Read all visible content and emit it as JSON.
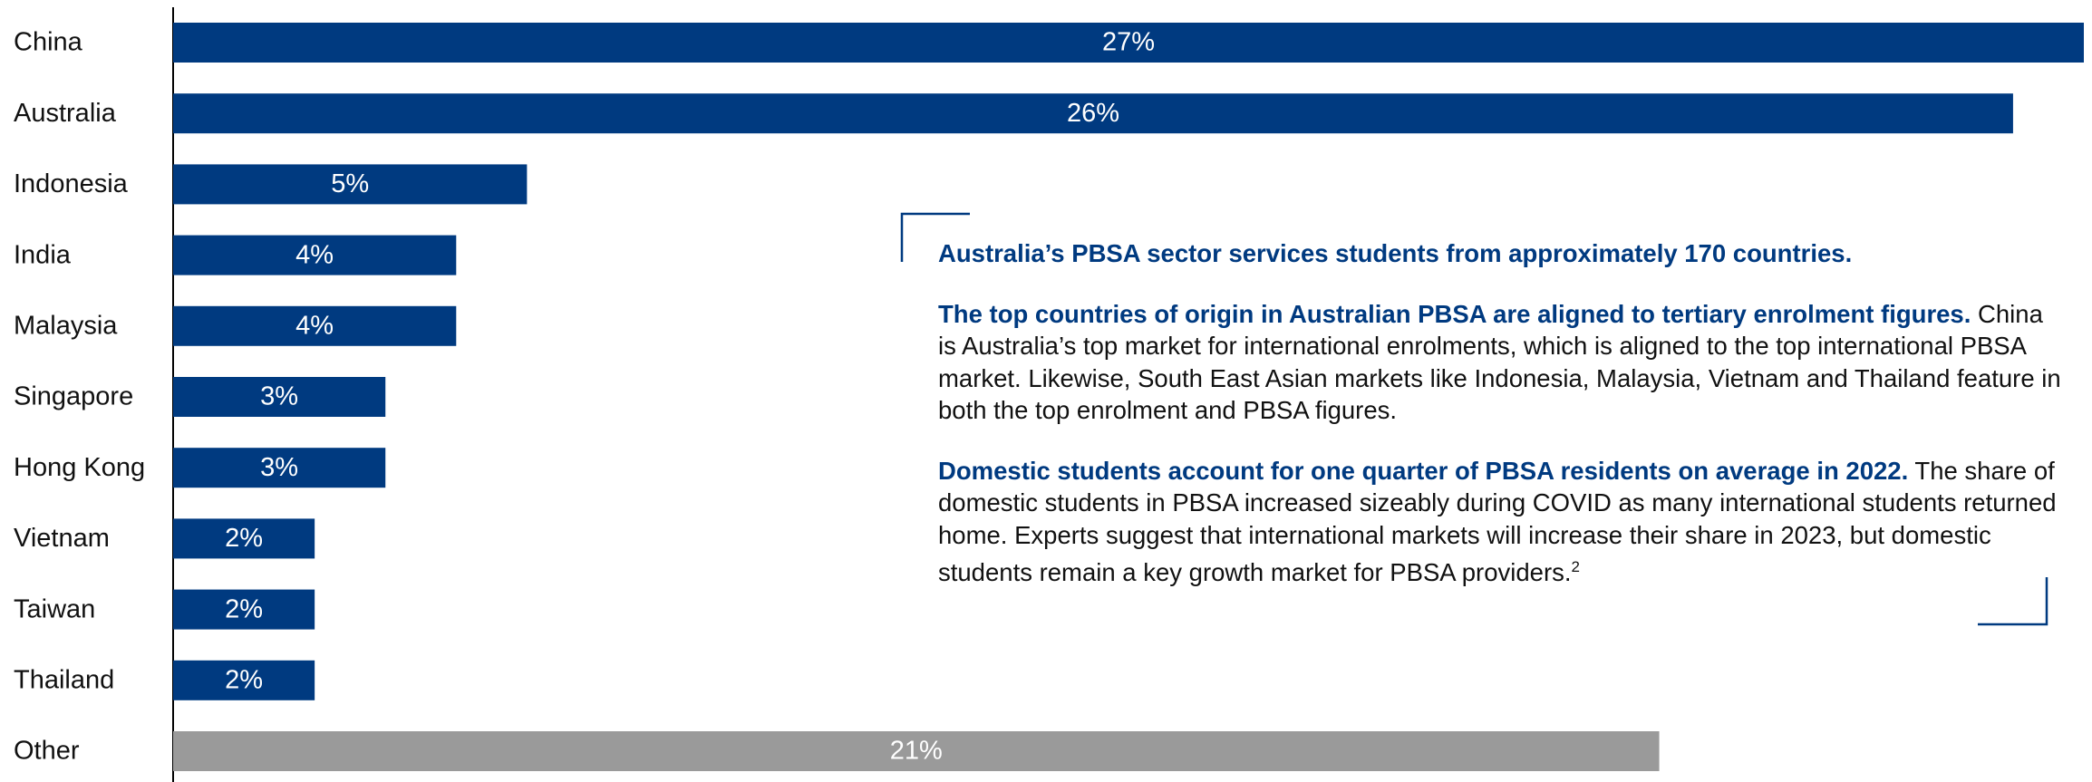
{
  "chart_data": {
    "type": "bar",
    "orientation": "horizontal",
    "categories": [
      "China",
      "Australia",
      "Indonesia",
      "India",
      "Malaysia",
      "Singapore",
      "Hong Kong",
      "Vietnam",
      "Taiwan",
      "Thailand",
      "Other"
    ],
    "values": [
      27,
      26,
      5,
      4,
      4,
      3,
      3,
      2,
      2,
      2,
      21
    ],
    "value_labels": [
      "27%",
      "26%",
      "5%",
      "4%",
      "4%",
      "3%",
      "3%",
      "2%",
      "2%",
      "2%",
      "21%"
    ],
    "colors": [
      "#003a80",
      "#003a80",
      "#003a80",
      "#003a80",
      "#003a80",
      "#003a80",
      "#003a80",
      "#003a80",
      "#003a80",
      "#003a80",
      "#9a9a9a"
    ],
    "annotations": [
      {
        "bold": "Australia’s PBSA sector services students from approximately 170 countries."
      },
      {
        "bold": "The top countries of origin in Australian PBSA are aligned to tertiary enrolment figures.",
        "text": "China is Australia’s top market for international enrolments, which is aligned to the top international PBSA market. Likewise, South East Asian markets like Indonesia, Malaysia, Vietnam and Thailand feature in both the top enrolment and PBSA figures."
      },
      {
        "bold": "Domestic students account for one quarter of PBSA residents on average in 2022.",
        "text": "The share of domestic students in PBSA increased sizeably during COVID as many international students returned home. Experts suggest that international markets will increase their share in 2023, but domestic students remain a key growth market for PBSA providers.",
        "footnote": "2"
      }
    ]
  }
}
